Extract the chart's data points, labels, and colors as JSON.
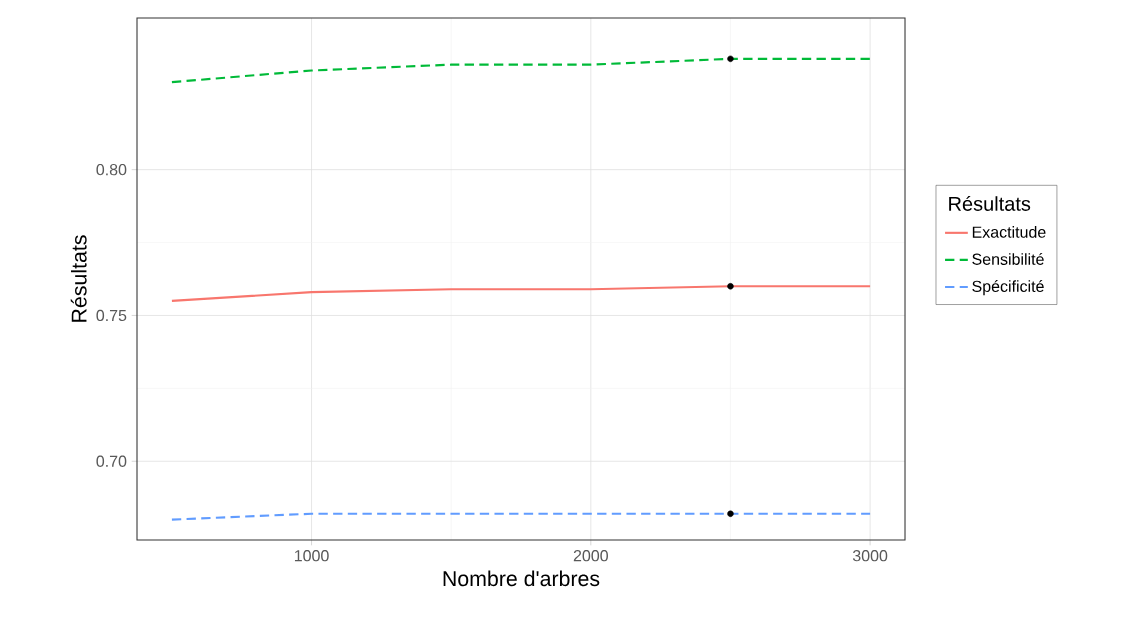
{
  "chart_data": {
    "type": "line",
    "xlabel": "Nombre d'arbres",
    "ylabel": "Résultats",
    "legend_title": "Résultats",
    "xlim": [
      375,
      3125
    ],
    "ylim": [
      0.673,
      0.852
    ],
    "xticks": [
      1000,
      2000,
      3000
    ],
    "yticks": [
      {
        "value": 0.7,
        "label": "0.70"
      },
      {
        "value": 0.75,
        "label": "0.75"
      },
      {
        "value": 0.8,
        "label": "0.80"
      }
    ],
    "grid": true,
    "legend": "right",
    "marker": "none",
    "series": [
      {
        "name": "Exactitude",
        "color": "#f8766d",
        "line_style": "solid",
        "x": [
          500,
          1000,
          1500,
          2000,
          2500,
          3000
        ],
        "values": [
          0.755,
          0.758,
          0.759,
          0.759,
          0.76,
          0.76
        ]
      },
      {
        "name": "Sensibilité",
        "color": "#00ba38",
        "line_style": "dashed",
        "x": [
          500,
          1000,
          1500,
          2000,
          2500,
          3000
        ],
        "values": [
          0.83,
          0.834,
          0.836,
          0.836,
          0.838,
          0.838
        ]
      },
      {
        "name": "Spécificité",
        "color": "#619cff",
        "line_style": "dashed",
        "x": [
          500,
          1000,
          1500,
          2000,
          2500,
          3000
        ],
        "values": [
          0.68,
          0.682,
          0.682,
          0.682,
          0.682,
          0.682
        ]
      },
      {
        "type": "scatter",
        "color": "#000000",
        "marker": "circle",
        "x": [
          2500,
          2500,
          2500
        ],
        "values": [
          0.76,
          0.838,
          0.682
        ]
      }
    ]
  }
}
